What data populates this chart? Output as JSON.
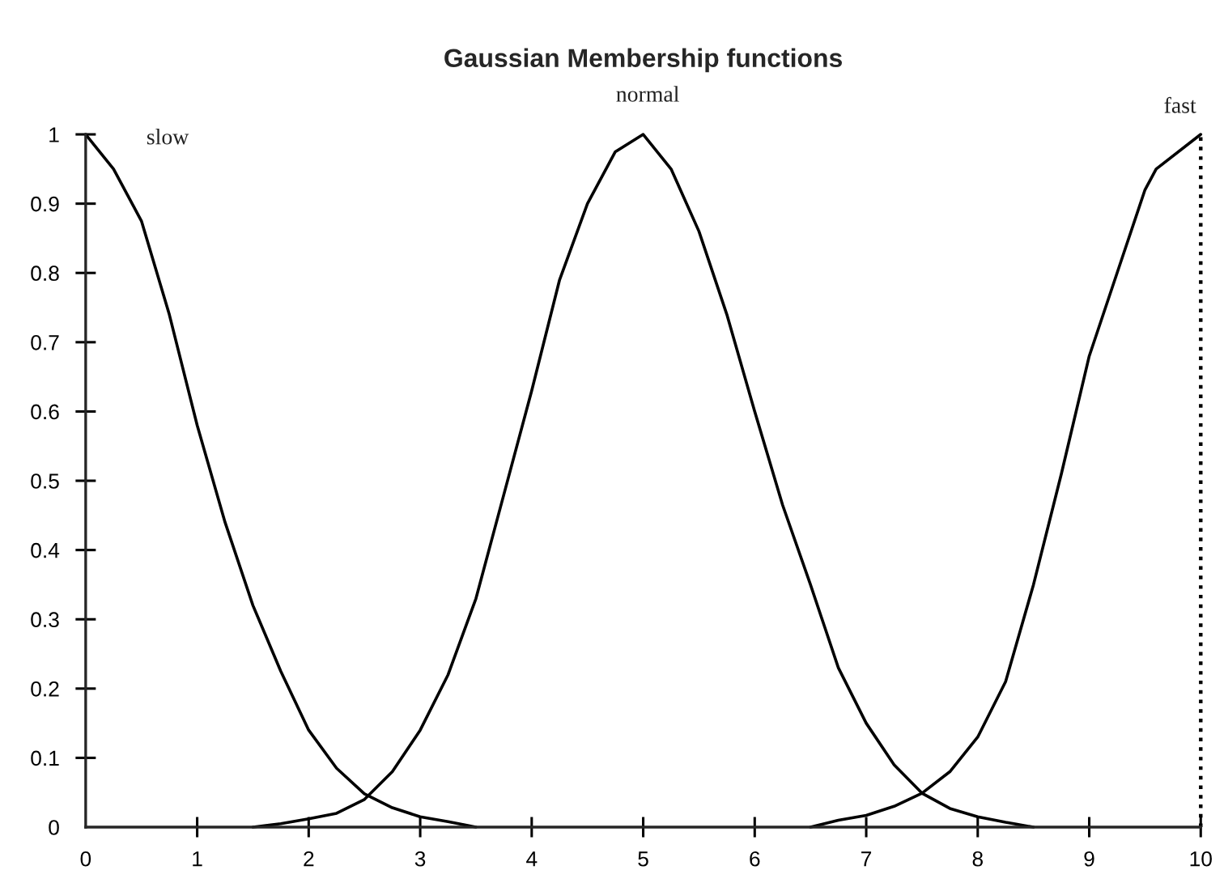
{
  "chart_data": {
    "type": "line",
    "title": "Gaussian Membership functions",
    "series": [
      {
        "name": "slow",
        "color": "#000000",
        "x": [
          0,
          0.25,
          0.5,
          0.75,
          1,
          1.25,
          1.5,
          1.75,
          2,
          2.25,
          2.5,
          2.75,
          3,
          3.25,
          3.5
        ],
        "values": [
          1,
          0.95,
          0.875,
          0.74,
          0.58,
          0.44,
          0.32,
          0.225,
          0.14,
          0.085,
          0.048,
          0.028,
          0.015,
          0.008,
          0
        ]
      },
      {
        "name": "normal",
        "color": "#000000",
        "x": [
          1.5,
          1.75,
          2,
          2.25,
          2.5,
          2.75,
          3,
          3.25,
          3.5,
          3.75,
          4,
          4.25,
          4.5,
          4.75,
          5,
          5.25,
          5.5,
          5.75,
          6,
          6.25,
          6.5,
          6.75,
          7,
          7.25,
          7.5,
          7.75,
          8,
          8.25,
          8.5
        ],
        "values": [
          0,
          0.005,
          0.012,
          0.02,
          0.04,
          0.08,
          0.14,
          0.22,
          0.33,
          0.48,
          0.63,
          0.79,
          0.9,
          0.975,
          1,
          0.95,
          0.86,
          0.74,
          0.6,
          0.465,
          0.35,
          0.23,
          0.15,
          0.09,
          0.049,
          0.027,
          0.015,
          0.007,
          0
        ]
      },
      {
        "name": "fast",
        "color": "#000000",
        "x": [
          6.5,
          6.75,
          7,
          7.25,
          7.5,
          7.75,
          8,
          8.25,
          8.5,
          8.75,
          9,
          9.25,
          9.5,
          9.6,
          10
        ],
        "values": [
          0,
          0.01,
          0.017,
          0.03,
          0.049,
          0.08,
          0.13,
          0.21,
          0.35,
          0.51,
          0.68,
          0.8,
          0.92,
          0.95,
          1
        ]
      }
    ],
    "xlim": [
      0,
      10
    ],
    "ylim": [
      0,
      1
    ],
    "xticks": [
      0,
      1,
      2,
      3,
      4,
      5,
      6,
      7,
      8,
      9,
      10
    ],
    "yticks": [
      0,
      0.1,
      0.2,
      0.3,
      0.4,
      0.5,
      0.6,
      0.7,
      0.8,
      0.9,
      1
    ],
    "ref_lines": [
      {
        "axis": "x",
        "value": 10,
        "color": "#000000",
        "line_style": "dotted"
      }
    ],
    "line_style": "solid",
    "marker": "none"
  }
}
